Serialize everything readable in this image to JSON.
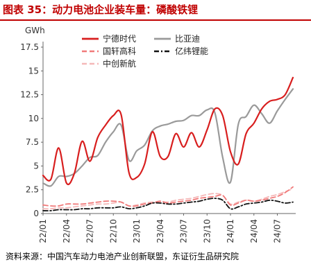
{
  "figure": {
    "title": "图表 35：动力电池企业装车量：磷酸铁锂",
    "source": "资料来源：中国汽车动力电池产业创新联盟，东证衍生品研究院"
  },
  "chart_data": {
    "type": "line",
    "title": "",
    "xlabel": "",
    "ylabel": "GWh",
    "ylim": [
      0,
      17.5
    ],
    "yticks": [
      0,
      2.5,
      5,
      7.5,
      10,
      12.5,
      15,
      17.5
    ],
    "ytick_labels": [
      "0",
      "2.5",
      "5",
      "7.5",
      "10",
      "12.5",
      "15",
      "17.5"
    ],
    "x_tick_labels": [
      "22/01",
      "22/04",
      "22/07",
      "22/10",
      "23/01",
      "23/04",
      "23/07",
      "23/10",
      "24/01",
      "24/04",
      "24/07"
    ],
    "x_tick_indices": [
      0,
      3,
      6,
      9,
      12,
      15,
      18,
      21,
      24,
      27,
      30
    ],
    "grid": false,
    "legend_position": "top",
    "series": [
      {
        "name": "宁德时代",
        "color": "#d81e1e",
        "dash": "solid",
        "width": 2.2,
        "values": [
          4.0,
          3.6,
          6.9,
          3.2,
          4.2,
          7.6,
          5.5,
          8.0,
          9.3,
          10.3,
          10.4,
          4.3,
          3.8,
          5.2,
          8.6,
          6.0,
          6.0,
          8.4,
          7.0,
          8.5,
          7.0,
          8.8,
          11.0,
          10.3,
          6.5,
          5.2,
          8.4,
          9.5,
          11.0,
          11.8,
          12.0,
          12.5,
          14.3
        ]
      },
      {
        "name": "比亚迪",
        "color": "#9a9a9a",
        "dash": "solid",
        "width": 2.2,
        "values": [
          3.2,
          2.9,
          3.9,
          3.9,
          4.2,
          5.0,
          5.9,
          6.1,
          7.5,
          8.6,
          9.3,
          5.6,
          6.6,
          7.2,
          8.7,
          9.2,
          9.4,
          9.7,
          9.8,
          10.3,
          10.3,
          10.9,
          10.6,
          5.9,
          3.3,
          9.4,
          10.2,
          11.4,
          10.5,
          9.5,
          10.8,
          12.0,
          13.1
        ]
      },
      {
        "name": "国轩高科",
        "color": "#f07a7a",
        "dash": "7,4",
        "width": 1.8,
        "values": [
          0.9,
          0.8,
          0.8,
          1.0,
          1.0,
          1.0,
          1.1,
          1.2,
          1.3,
          1.3,
          1.2,
          0.8,
          0.8,
          1.0,
          1.1,
          1.3,
          1.1,
          1.2,
          1.3,
          1.4,
          1.6,
          1.7,
          1.8,
          1.9,
          0.9,
          1.1,
          1.4,
          1.3,
          1.4,
          1.6,
          1.8,
          2.2,
          2.8
        ]
      },
      {
        "name": "亿纬锂能",
        "color": "#111111",
        "dash": "7,3,2,3",
        "width": 1.8,
        "values": [
          0.3,
          0.3,
          0.4,
          0.4,
          0.4,
          0.5,
          0.5,
          0.6,
          0.6,
          0.6,
          0.7,
          0.5,
          0.6,
          0.8,
          1.1,
          1.1,
          1.0,
          1.0,
          1.1,
          1.2,
          1.3,
          1.5,
          1.6,
          1.4,
          0.5,
          0.7,
          1.0,
          1.1,
          1.2,
          1.4,
          1.3,
          1.1,
          1.2
        ]
      },
      {
        "name": "中创新航",
        "color": "#f5b8b8",
        "dash": "7,4",
        "width": 1.8,
        "values": [
          0.5,
          0.5,
          0.6,
          0.6,
          0.7,
          0.8,
          0.9,
          1.0,
          1.0,
          1.1,
          1.2,
          0.8,
          0.9,
          1.1,
          1.2,
          1.2,
          1.2,
          1.4,
          1.5,
          1.6,
          1.8,
          2.0,
          2.1,
          1.9,
          1.0,
          1.2,
          1.4,
          1.3,
          1.5,
          1.8,
          2.0,
          2.3,
          2.6
        ]
      }
    ]
  }
}
